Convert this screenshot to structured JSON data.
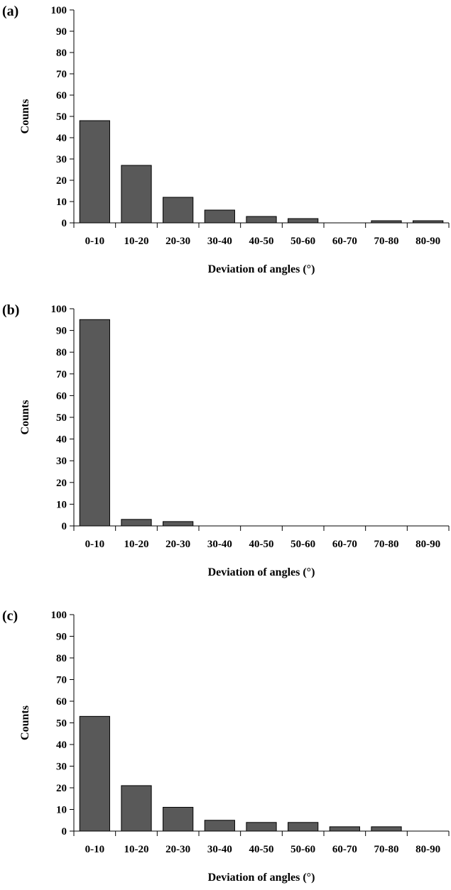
{
  "chart_data": [
    {
      "type": "bar",
      "panel_label": "(a)",
      "categories": [
        "0-10",
        "10-20",
        "20-30",
        "30-40",
        "40-50",
        "50-60",
        "60-70",
        "70-80",
        "80-90"
      ],
      "values": [
        48,
        27,
        12,
        6,
        3,
        2,
        0,
        1,
        1
      ],
      "xlabel": "Deviation of angles (°)",
      "ylabel": "Counts",
      "ylim": [
        0,
        100
      ],
      "yticks": [
        "0",
        "10",
        "20",
        "30",
        "40",
        "50",
        "60",
        "70",
        "80",
        "90",
        "100"
      ],
      "grid": false,
      "legend": "none"
    },
    {
      "type": "bar",
      "panel_label": "(b)",
      "categories": [
        "0-10",
        "10-20",
        "20-30",
        "30-40",
        "40-50",
        "50-60",
        "60-70",
        "70-80",
        "80-90"
      ],
      "values": [
        95,
        3,
        2,
        0,
        0,
        0,
        0,
        0,
        0
      ],
      "xlabel": "Deviation of angles (°)",
      "ylabel": "Counts",
      "ylim": [
        0,
        100
      ],
      "yticks": [
        "0",
        "10",
        "20",
        "30",
        "40",
        "50",
        "60",
        "70",
        "80",
        "90",
        "100"
      ],
      "grid": false,
      "legend": "none"
    },
    {
      "type": "bar",
      "panel_label": "(c)",
      "categories": [
        "0-10",
        "10-20",
        "20-30",
        "30-40",
        "40-50",
        "50-60",
        "60-70",
        "70-80",
        "80-90"
      ],
      "values": [
        53,
        21,
        11,
        5,
        4,
        4,
        2,
        2,
        0
      ],
      "xlabel": "Deviation of angles (°)",
      "ylabel": "Counts",
      "ylim": [
        0,
        100
      ],
      "yticks": [
        "0",
        "10",
        "20",
        "30",
        "40",
        "50",
        "60",
        "70",
        "80",
        "90",
        "100"
      ],
      "grid": false,
      "legend": "none"
    }
  ],
  "colors": {
    "bar_fill": "#595959",
    "bar_stroke": "#000000",
    "axis": "#000000"
  }
}
